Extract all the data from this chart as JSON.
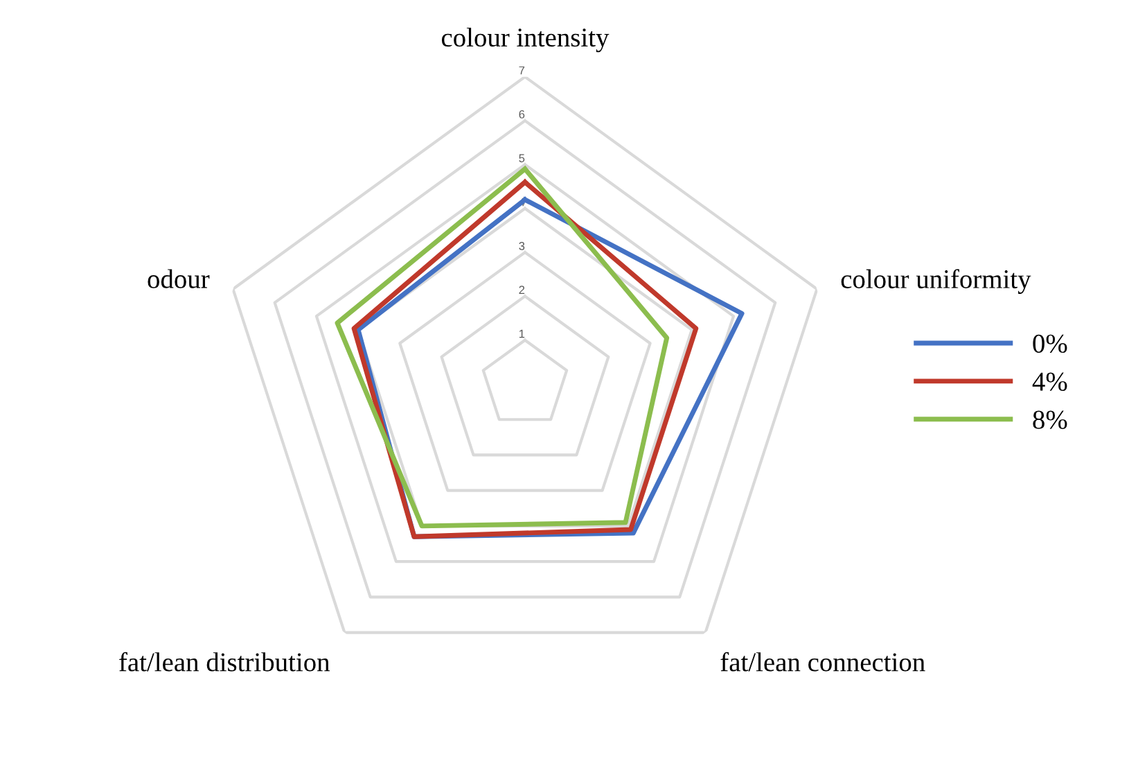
{
  "chart_data": {
    "type": "radar",
    "categories": [
      "colour intensity",
      "colour uniformity",
      "fat/lean connection",
      "fat/lean distribution",
      "odour"
    ],
    "ylim": [
      0,
      7
    ],
    "yticks": [
      1,
      2,
      3,
      4,
      5,
      6,
      7
    ],
    "grid": true,
    "legend": "right",
    "marker": "none",
    "series": [
      {
        "name": "0%",
        "color": "#4472c4",
        "values": [
          4.2,
          5.2,
          4.2,
          4.3,
          4.0
        ]
      },
      {
        "name": "4%",
        "color": "#c0392b",
        "values": [
          4.6,
          4.1,
          4.1,
          4.3,
          4.1
        ]
      },
      {
        "name": "8%",
        "color": "#8cbd4e",
        "values": [
          4.9,
          3.4,
          3.9,
          4.0,
          4.5
        ]
      }
    ]
  }
}
